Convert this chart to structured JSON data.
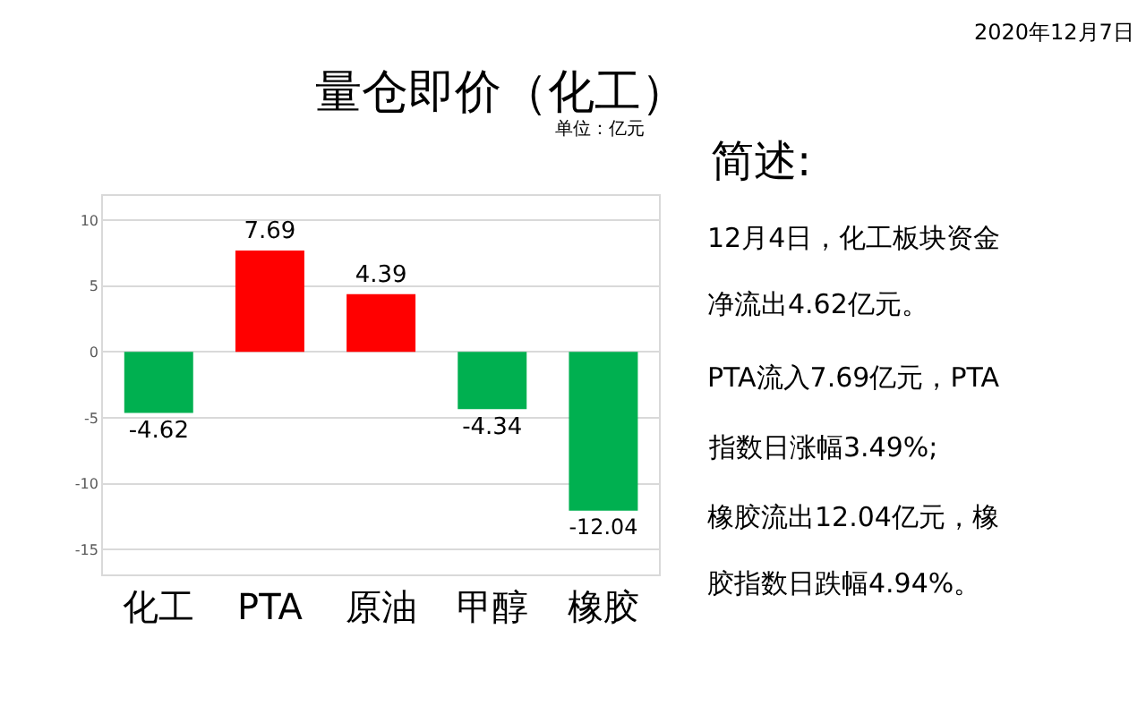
{
  "chart_data": {
    "type": "bar",
    "title": "量仓即价（化工）",
    "categories": [
      "化工",
      "PTA",
      "原油",
      "甲醇",
      "橡胶"
    ],
    "values": [
      -4.62,
      7.69,
      4.39,
      -4.34,
      -12.04
    ],
    "colors": [
      "#00b050",
      "#ff0000",
      "#ff0000",
      "#00b050",
      "#00b050"
    ],
    "ylim": [
      -16.9,
      11.8
    ],
    "yticks": [
      -15,
      -10,
      -5,
      0,
      5,
      10
    ],
    "grid": "y",
    "data_labels": true,
    "annotations": [
      "2020年12月7日",
      "单位：亿元",
      "简述:",
      "12月4日，化工板块资金",
      "净流出4.62亿元。",
      "PTA流入7.69亿元，PTA",
      "指数日涨幅3.49%;",
      "橡胶流出12.04亿元，橡",
      "胶指数日跌幅4.94%。"
    ]
  }
}
